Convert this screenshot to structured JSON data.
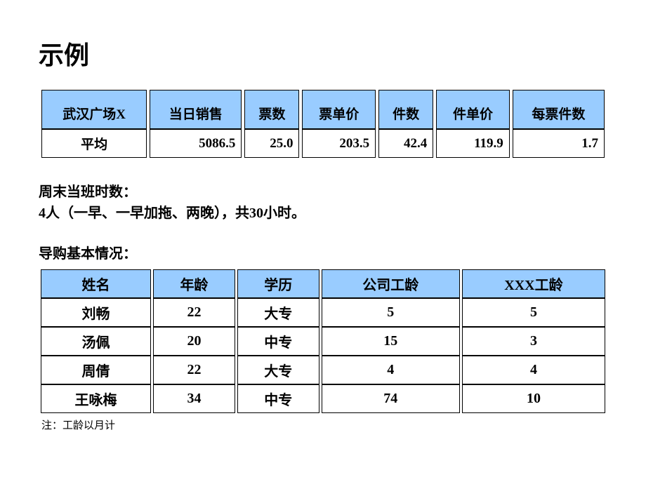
{
  "title": "示例",
  "table1": {
    "header_bg": "#99ccff",
    "border_color": "#000000",
    "columns": [
      "武汉广场X",
      "当日销售",
      "票数",
      "票单价",
      "件数",
      "件单价",
      "每票件数"
    ],
    "row_label": "平均",
    "values": [
      "5086.5",
      "25.0",
      "203.5",
      "42.4",
      "119.9",
      "1.7"
    ]
  },
  "shift": {
    "line1": "周末当班时数：",
    "line2": "4人（一早、一早加拖、两晚），共30小时。"
  },
  "guide_heading": "导购基本情况：",
  "table2": {
    "header_bg": "#99ccff",
    "columns": [
      "姓名",
      "年龄",
      "学历",
      "公司工龄",
      "XXX工龄"
    ],
    "rows": [
      [
        "刘畅",
        "22",
        "大专",
        "5",
        "5"
      ],
      [
        "汤佩",
        "20",
        "中专",
        "15",
        "3"
      ],
      [
        "周倩",
        "22",
        "大专",
        "4",
        "4"
      ],
      [
        "王咏梅",
        "34",
        "中专",
        "74",
        "10"
      ]
    ]
  },
  "footnote": "注：工龄以月计"
}
